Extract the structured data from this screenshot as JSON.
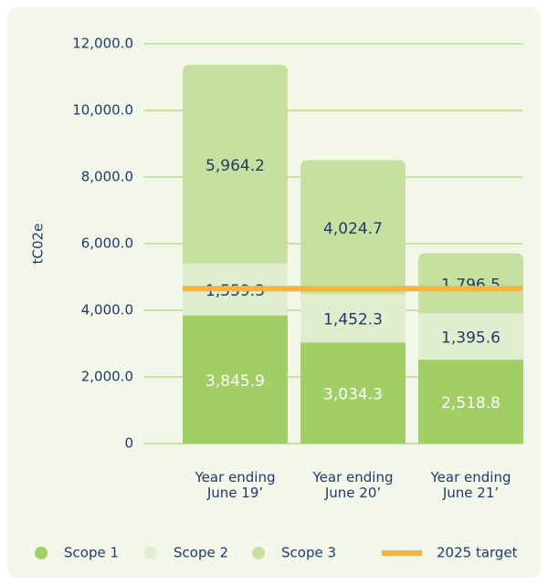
{
  "chart_data": {
    "type": "stacked-bar",
    "y_label": "tC02e",
    "categories": [
      "Year ending\nJune 19’",
      "Year ending\nJune 20’",
      "Year ending\nJune 21’"
    ],
    "series": [
      {
        "name": "Scope 1",
        "color": "#a2ce66",
        "label_color": "#ffffff",
        "values": [
          3845.9,
          3034.3,
          2518.8
        ],
        "value_labels": [
          "3,845.9",
          "3,034.3",
          "2,518.8"
        ]
      },
      {
        "name": "Scope 2",
        "color": "#e1eecd",
        "label_color": "#1f3a6b",
        "values": [
          1559.3,
          1452.3,
          1395.6
        ],
        "value_labels": [
          "1,559.3",
          "1,452.3",
          "1,395.6"
        ]
      },
      {
        "name": "Scope 3",
        "color": "#c6e0a0",
        "label_color": "#1f3a6b",
        "values": [
          5964.2,
          4024.7,
          1796.5
        ],
        "value_labels": [
          "5,964.2",
          "4,024.7",
          "1,796.5"
        ]
      }
    ],
    "target": {
      "name": "2025 target",
      "value": 4650,
      "color": "#f7b33c"
    },
    "ylim": [
      0,
      12000
    ],
    "yticks": [
      0,
      {
        "value": 2000,
        "label": "2,000.0"
      },
      {
        "value": 4000,
        "label": "4,000.0"
      },
      {
        "value": 6000,
        "label": "6,000.0"
      },
      {
        "value": 8000,
        "label": "8,000.0"
      },
      {
        "value": 10000,
        "label": "10,000.0"
      },
      {
        "value": 12000,
        "label": "12,000.0"
      }
    ],
    "grid": true,
    "grid_color": "#b9d98c"
  }
}
